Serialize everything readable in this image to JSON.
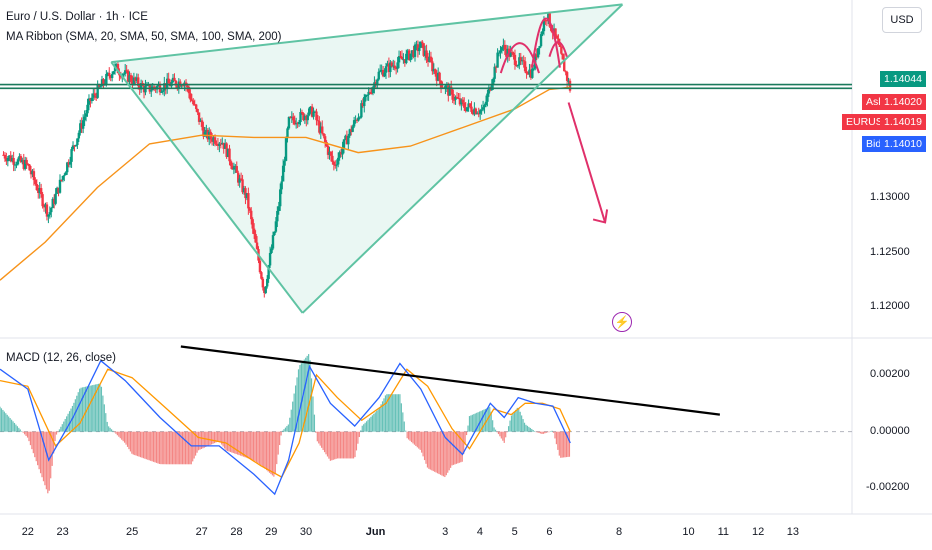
{
  "legend": {
    "title": "Euro / U.S. Dollar · 1h · ICE",
    "ma_ribbon": "MA Ribbon (SMA, 20, SMA, 50, SMA, 100, SMA, 200)",
    "macd": "MACD (12, 26, close)"
  },
  "currency_button": "USD",
  "price_tags": {
    "last": {
      "price": "1.14044",
      "color": "#089981"
    },
    "ask": {
      "label": "Ask",
      "price": "1.14020",
      "color": "#f23645"
    },
    "symbol": {
      "label": "EURUSD",
      "price": "1.14019",
      "color": "#f23645"
    },
    "bid": {
      "label": "Bid",
      "price": "1.14010",
      "color": "#2962ff"
    }
  },
  "chart_data": [
    {
      "type": "candlestick",
      "symbol": "EURUSD",
      "timeframe": "1h",
      "y_ticks": [
        "1.13500",
        "1.13000",
        "1.12500",
        "1.12000"
      ],
      "ylim": [
        1.1172,
        1.1482
      ],
      "x_ticks": [
        "22",
        "23",
        "25",
        "27",
        "28",
        "29",
        "30",
        "Jun",
        "3",
        "4",
        "5",
        "6",
        "8",
        "10",
        "11",
        "12",
        "13"
      ],
      "x_tick_days": [
        22,
        23,
        25,
        27,
        28,
        29,
        30,
        32,
        34,
        35,
        36,
        37,
        39,
        41,
        42,
        43,
        44
      ],
      "xlim": [
        21.2,
        45.7
      ],
      "last_candle_day": 37.6,
      "daily_close_approx": [
        {
          "day": 21.3,
          "close": 1.134
        },
        {
          "day": 22.0,
          "close": 1.133
        },
        {
          "day": 22.6,
          "close": 1.1285
        },
        {
          "day": 23.0,
          "close": 1.132
        },
        {
          "day": 23.8,
          "close": 1.139
        },
        {
          "day": 24.5,
          "close": 1.142
        },
        {
          "day": 25.4,
          "close": 1.14
        },
        {
          "day": 26.5,
          "close": 1.1408
        },
        {
          "day": 27.1,
          "close": 1.1358
        },
        {
          "day": 27.6,
          "close": 1.1352
        },
        {
          "day": 28.3,
          "close": 1.13
        },
        {
          "day": 28.8,
          "close": 1.1215
        },
        {
          "day": 29.2,
          "close": 1.129
        },
        {
          "day": 29.5,
          "close": 1.137
        },
        {
          "day": 30.2,
          "close": 1.138
        },
        {
          "day": 30.8,
          "close": 1.133
        },
        {
          "day": 31.4,
          "close": 1.137
        },
        {
          "day": 32.1,
          "close": 1.1415
        },
        {
          "day": 32.9,
          "close": 1.143
        },
        {
          "day": 33.3,
          "close": 1.144
        },
        {
          "day": 33.9,
          "close": 1.1405
        },
        {
          "day": 34.5,
          "close": 1.1385
        },
        {
          "day": 35.1,
          "close": 1.138
        },
        {
          "day": 35.6,
          "close": 1.144
        },
        {
          "day": 36.1,
          "close": 1.1425
        },
        {
          "day": 36.5,
          "close": 1.1415
        },
        {
          "day": 36.9,
          "close": 1.147
        },
        {
          "day": 37.2,
          "close": 1.1445
        },
        {
          "day": 37.6,
          "close": 1.14
        }
      ],
      "ma_line": [
        {
          "day": 21.2,
          "value": 1.1225
        },
        {
          "day": 22.5,
          "value": 1.126
        },
        {
          "day": 24.0,
          "value": 1.131
        },
        {
          "day": 25.5,
          "value": 1.135
        },
        {
          "day": 27.0,
          "value": 1.1358
        },
        {
          "day": 28.5,
          "value": 1.1356
        },
        {
          "day": 30.0,
          "value": 1.1356
        },
        {
          "day": 31.5,
          "value": 1.1342
        },
        {
          "day": 33.0,
          "value": 1.1348
        },
        {
          "day": 34.5,
          "value": 1.1365
        },
        {
          "day": 36.0,
          "value": 1.1382
        },
        {
          "day": 37.0,
          "value": 1.14
        },
        {
          "day": 37.6,
          "value": 1.1402
        }
      ],
      "horizontal_levels": [
        1.1401,
        1.14044
      ]
    },
    {
      "type": "line",
      "name": "MACD (12, 26, close)",
      "y_ticks": [
        "0.00200",
        "0.00000",
        "-0.00200"
      ],
      "ylim": [
        -0.0029,
        0.0033
      ],
      "macd_line": [
        {
          "day": 21.2,
          "value": 0.0022
        },
        {
          "day": 22.0,
          "value": 0.0015
        },
        {
          "day": 22.6,
          "value": -0.001
        },
        {
          "day": 23.3,
          "value": 0.0005
        },
        {
          "day": 24.1,
          "value": 0.0025
        },
        {
          "day": 24.8,
          "value": 0.0018
        },
        {
          "day": 25.8,
          "value": 0.0005
        },
        {
          "day": 26.7,
          "value": -0.0005
        },
        {
          "day": 27.5,
          "value": -0.0005
        },
        {
          "day": 28.5,
          "value": -0.0015
        },
        {
          "day": 29.1,
          "value": -0.0022
        },
        {
          "day": 29.5,
          "value": -0.001
        },
        {
          "day": 30.1,
          "value": 0.0023
        },
        {
          "day": 30.7,
          "value": 0.001
        },
        {
          "day": 31.4,
          "value": 0.0002
        },
        {
          "day": 32.1,
          "value": 0.0012
        },
        {
          "day": 32.7,
          "value": 0.0024
        },
        {
          "day": 33.3,
          "value": 0.0015
        },
        {
          "day": 34.0,
          "value": -0.0002
        },
        {
          "day": 34.5,
          "value": -0.0008
        },
        {
          "day": 35.3,
          "value": 0.001
        },
        {
          "day": 35.7,
          "value": 0.0005
        },
        {
          "day": 36.1,
          "value": 0.0012
        },
        {
          "day": 36.6,
          "value": 0.001
        },
        {
          "day": 37.1,
          "value": 0.0009
        },
        {
          "day": 37.6,
          "value": -0.0004
        }
      ],
      "signal_line": [
        {
          "day": 21.2,
          "value": 0.0018
        },
        {
          "day": 22.0,
          "value": 0.0016
        },
        {
          "day": 22.8,
          "value": -0.0005
        },
        {
          "day": 23.5,
          "value": 0.0003
        },
        {
          "day": 24.3,
          "value": 0.0022
        },
        {
          "day": 25.0,
          "value": 0.0019
        },
        {
          "day": 26.0,
          "value": 0.0008
        },
        {
          "day": 26.9,
          "value": -0.0002
        },
        {
          "day": 27.7,
          "value": -0.0004
        },
        {
          "day": 28.7,
          "value": -0.0012
        },
        {
          "day": 29.3,
          "value": -0.0016
        },
        {
          "day": 29.8,
          "value": -0.0004
        },
        {
          "day": 30.3,
          "value": 0.002
        },
        {
          "day": 30.9,
          "value": 0.0012
        },
        {
          "day": 31.6,
          "value": 0.0004
        },
        {
          "day": 32.3,
          "value": 0.001
        },
        {
          "day": 32.9,
          "value": 0.0022
        },
        {
          "day": 33.5,
          "value": 0.0016
        },
        {
          "day": 34.2,
          "value": 0.0001
        },
        {
          "day": 34.7,
          "value": -0.0006
        },
        {
          "day": 35.4,
          "value": 0.0008
        },
        {
          "day": 35.9,
          "value": 0.0006
        },
        {
          "day": 36.3,
          "value": 0.001
        },
        {
          "day": 36.8,
          "value": 0.001
        },
        {
          "day": 37.3,
          "value": 0.0008
        },
        {
          "day": 37.6,
          "value": 0.0
        }
      ]
    }
  ],
  "colors": {
    "up": "#089981",
    "down": "#f23645",
    "ma": "#f7931a",
    "macd": "#2962ff",
    "signal": "#ff9800",
    "drawing": "#5fc3a3",
    "arrow": "#e0306a",
    "trend": "#000000"
  }
}
